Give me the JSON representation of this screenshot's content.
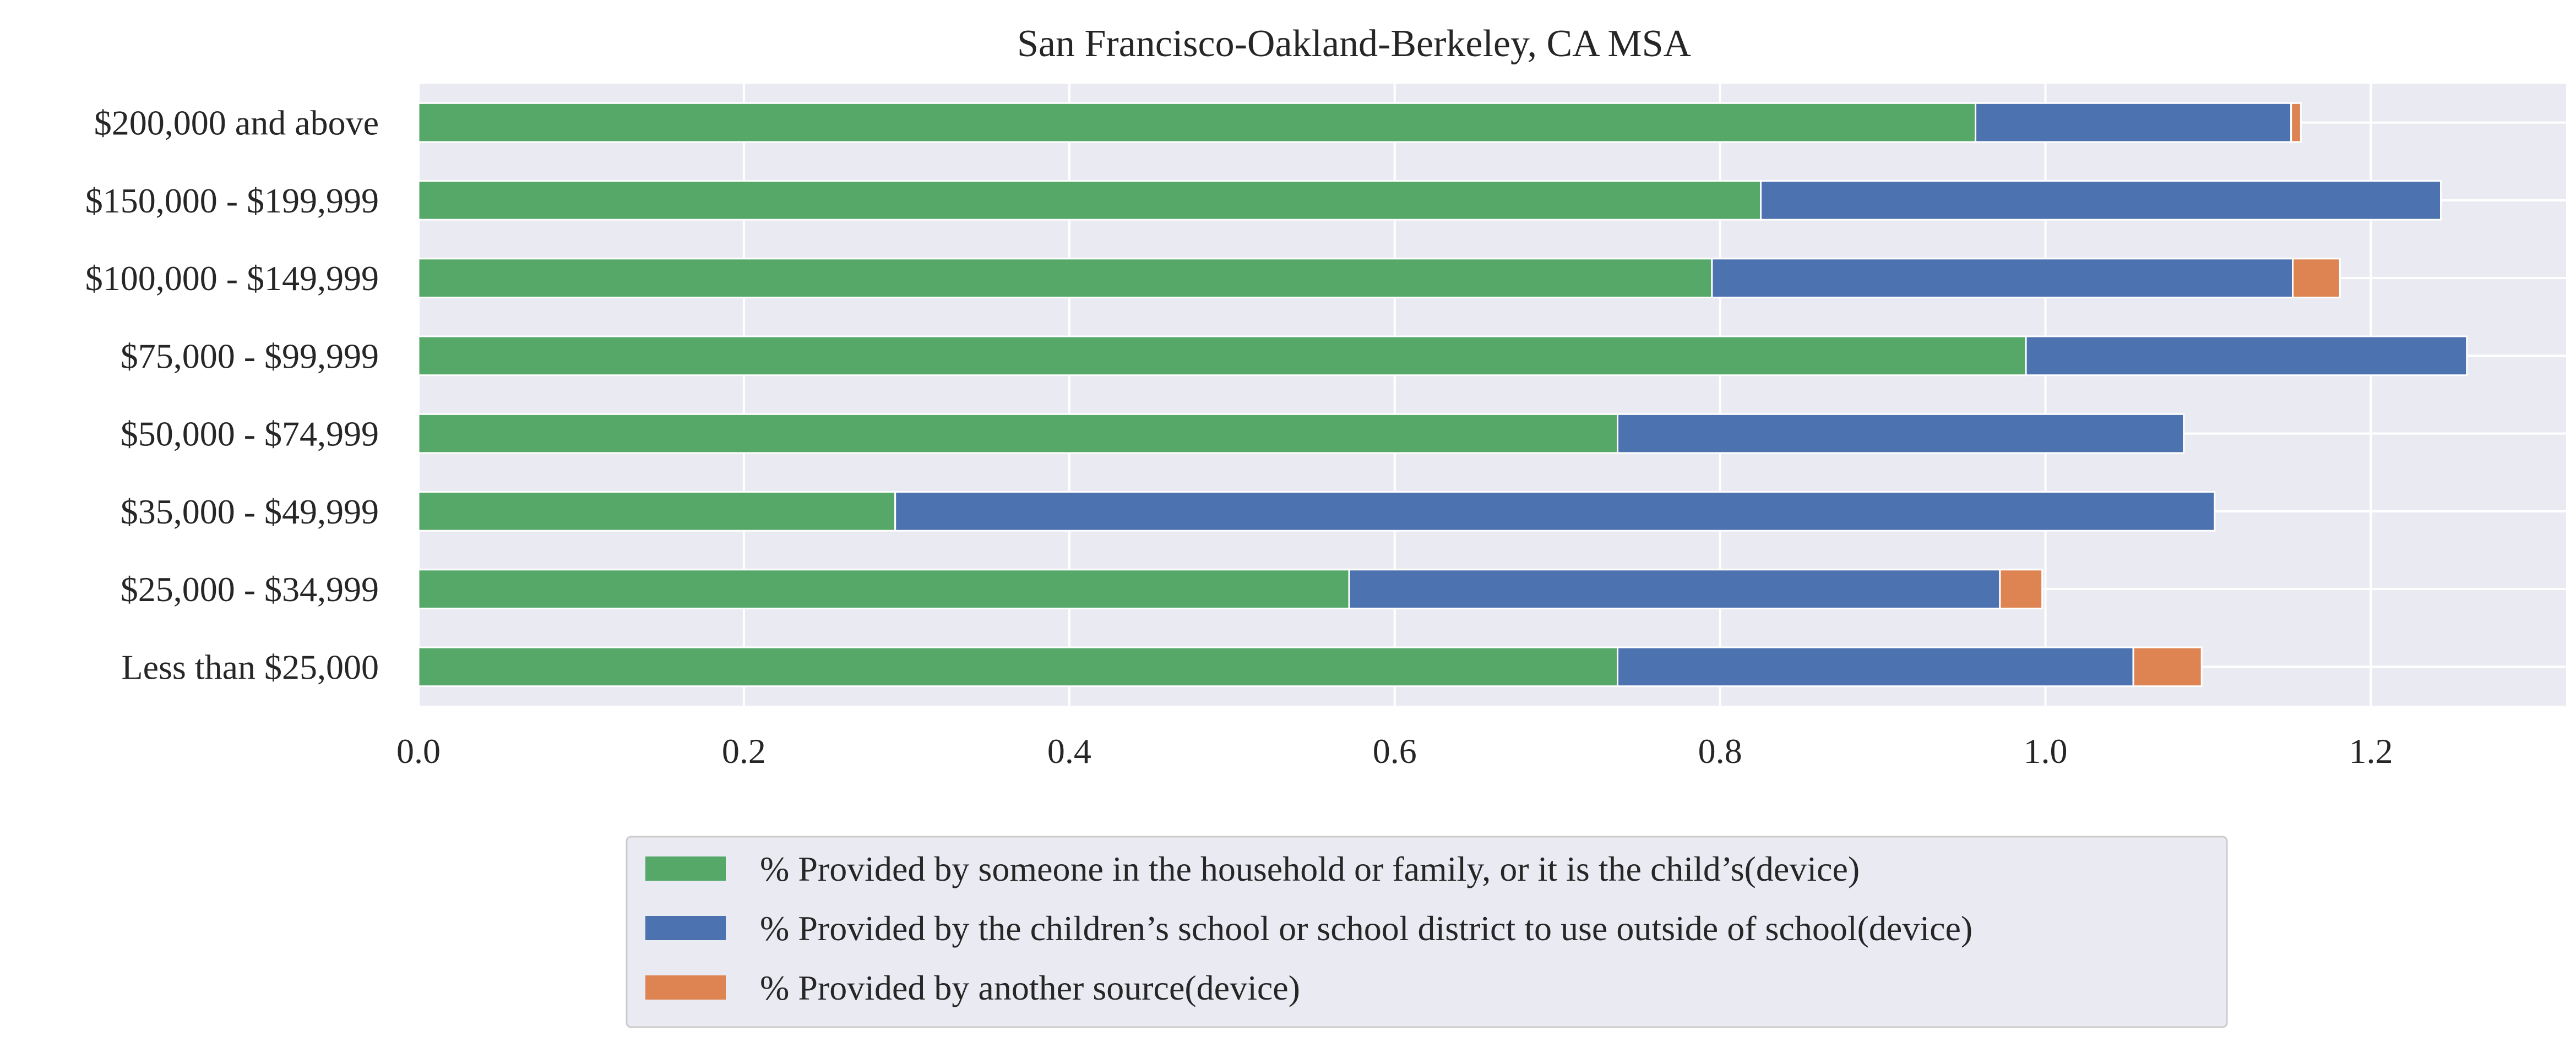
{
  "chart_data": {
    "type": "bar",
    "orientation": "horizontal",
    "stacked": true,
    "title": "San Francisco-Oakland-Berkeley, CA MSA",
    "xlabel": "",
    "ylabel": "",
    "xlim": [
      0,
      1.32
    ],
    "xticks": [
      "0.0",
      "0.2",
      "0.4",
      "0.6",
      "0.8",
      "1.0",
      "1.2"
    ],
    "categories": [
      "$200,000 and above",
      "$150,000 - $199,999",
      "$100,000 - $149,999",
      "$75,000 - $99,999",
      "$50,000 - $74,999",
      "$35,000 - $49,999",
      "$25,000 - $34,999",
      "Less than $25,000"
    ],
    "series": [
      {
        "name": "% Provided by someone in the household or family, or it is the child’s(device)",
        "color": "#55a868",
        "values": [
          0.957,
          0.825,
          0.795,
          0.988,
          0.737,
          0.293,
          0.572,
          0.737
        ]
      },
      {
        "name": "% Provided by the children’s school or school district to use outside of school(device)",
        "color": "#4c72b0",
        "values": [
          0.194,
          0.418,
          0.357,
          0.271,
          0.348,
          0.811,
          0.4,
          0.317
        ]
      },
      {
        "name": "% Provided by another source(device)",
        "color": "#dd8452",
        "values": [
          0.006,
          0.0,
          0.029,
          0.0,
          0.0,
          0.0,
          0.026,
          0.042
        ]
      }
    ],
    "grid": true,
    "legend_position": "bottom"
  }
}
